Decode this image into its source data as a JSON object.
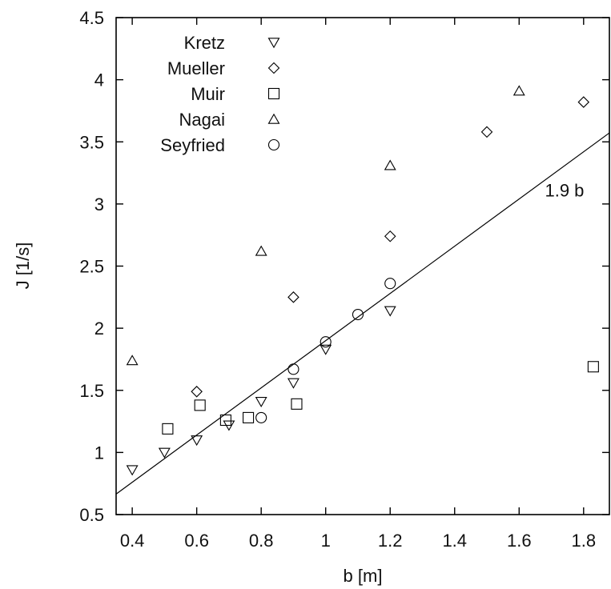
{
  "chart_data": {
    "type": "scatter",
    "xlabel": "b [m]",
    "ylabel": "J [1/s]",
    "xlim": [
      0.35,
      1.88
    ],
    "ylim": [
      0.5,
      4.5
    ],
    "x_ticks": [
      "0.4",
      "0.6",
      "0.8",
      "1",
      "1.2",
      "1.4",
      "1.6",
      "1.8"
    ],
    "y_ticks": [
      "0.5",
      "1",
      "1.5",
      "2",
      "2.5",
      "3",
      "3.5",
      "4",
      "4.5"
    ],
    "legend_position": "top-left",
    "series": [
      {
        "name": "Kretz",
        "marker": "triangle-down",
        "points": [
          [
            0.4,
            0.86
          ],
          [
            0.5,
            1.0
          ],
          [
            0.6,
            1.1
          ],
          [
            0.7,
            1.22
          ],
          [
            0.8,
            1.41
          ],
          [
            0.9,
            1.56
          ],
          [
            1.0,
            1.83
          ],
          [
            1.2,
            2.14
          ]
        ]
      },
      {
        "name": "Mueller",
        "marker": "diamond",
        "points": [
          [
            0.6,
            1.49
          ],
          [
            0.9,
            2.25
          ],
          [
            1.2,
            2.74
          ],
          [
            1.5,
            3.58
          ],
          [
            1.8,
            3.82
          ]
        ]
      },
      {
        "name": "Muir",
        "marker": "square",
        "points": [
          [
            0.51,
            1.19
          ],
          [
            0.61,
            1.38
          ],
          [
            0.69,
            1.26
          ],
          [
            0.76,
            1.28
          ],
          [
            0.91,
            1.39
          ],
          [
            1.83,
            1.69
          ]
        ]
      },
      {
        "name": "Nagai",
        "marker": "triangle-up",
        "points": [
          [
            0.4,
            1.74
          ],
          [
            0.8,
            2.62
          ],
          [
            1.2,
            3.31
          ],
          [
            1.6,
            3.91
          ]
        ]
      },
      {
        "name": "Seyfried",
        "marker": "circle",
        "points": [
          [
            0.8,
            1.28
          ],
          [
            0.9,
            1.67
          ],
          [
            1.0,
            1.89
          ],
          [
            1.1,
            2.11
          ],
          [
            1.2,
            2.36
          ]
        ]
      }
    ],
    "fit_line": {
      "label": "1.9 b",
      "slope": 1.9,
      "label_x": 1.68,
      "label_y": 3.06
    }
  }
}
